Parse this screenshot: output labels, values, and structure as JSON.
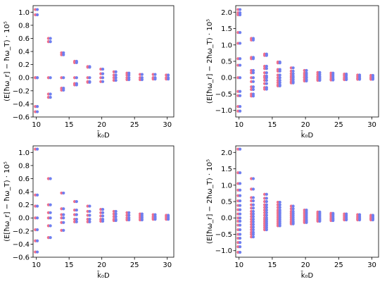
{
  "colors": {
    "point_a": "#ef6f8c",
    "point_b": "#6f7fef",
    "axis": "#000000"
  },
  "chart_data": [
    {
      "type": "scatter",
      "xlabel": "k̄₀D",
      "ylabel": "(E[ħω_r] − ħω_T) · 10⁵",
      "xlim": [
        9.5,
        31
      ],
      "ylim": [
        -0.6,
        1.1
      ],
      "xticks": [
        10,
        15,
        20,
        25,
        30
      ],
      "yticks": [
        -0.6,
        -0.4,
        -0.2,
        0.0,
        0.2,
        0.4,
        0.6,
        0.8,
        1.0
      ],
      "ytick_labels": [
        "−0.6",
        "−0.4",
        "−0.2",
        "0.0",
        "0.2",
        "0.4",
        "0.6",
        "0.8",
        "1.0"
      ],
      "grid": false,
      "series": [
        {
          "x": [
            10,
            10,
            10,
            10,
            10,
            10,
            12,
            12,
            12,
            12,
            12,
            14,
            14,
            14,
            14,
            14,
            16,
            16,
            16,
            16,
            16,
            18,
            18,
            18,
            18,
            18,
            20,
            20,
            20,
            20,
            22,
            22,
            22,
            22,
            24,
            24,
            24,
            24,
            26,
            26,
            26,
            28,
            28,
            28,
            30,
            30,
            30
          ],
          "values": [
            1.04,
            0.96,
            0.0,
            -0.44,
            -0.52,
            0.0,
            0.6,
            0.55,
            0.0,
            -0.25,
            -0.3,
            0.38,
            0.35,
            0.0,
            -0.16,
            -0.19,
            0.25,
            0.23,
            0.0,
            -0.09,
            -0.11,
            0.17,
            0.16,
            0.0,
            -0.06,
            -0.07,
            0.13,
            0.06,
            0.0,
            -0.06,
            0.09,
            0.04,
            0.0,
            -0.04,
            0.07,
            0.04,
            0.0,
            -0.03,
            0.05,
            0.0,
            -0.03,
            0.05,
            0.0,
            -0.02,
            0.04,
            0.0,
            -0.02
          ]
        }
      ]
    },
    {
      "type": "scatter",
      "xlabel": "k̄₀D",
      "ylabel": "(E[ħω_r] − 2ħω_T) · 10⁵",
      "xlim": [
        9.5,
        31
      ],
      "ylim": [
        -1.2,
        2.2
      ],
      "xticks": [
        10,
        15,
        20,
        25,
        30
      ],
      "yticks": [
        -1.0,
        -0.5,
        0.0,
        0.5,
        1.0,
        1.5,
        2.0
      ],
      "ytick_labels": [
        "−1.0",
        "−0.5",
        "0.0",
        "0.5",
        "1.0",
        "1.5",
        "2.0"
      ],
      "grid": false,
      "series": [
        {
          "x": [
            10,
            10,
            10,
            10,
            10,
            10,
            10,
            10,
            10,
            10,
            10,
            10,
            12,
            12,
            12,
            12,
            12,
            12,
            12,
            12,
            12,
            12,
            12,
            12,
            14,
            14,
            14,
            14,
            14,
            14,
            14,
            14,
            14,
            14,
            14,
            16,
            16,
            16,
            16,
            16,
            16,
            16,
            16,
            16,
            16,
            18,
            18,
            18,
            18,
            18,
            18,
            18,
            18,
            20,
            20,
            20,
            20,
            20,
            20,
            20,
            22,
            22,
            22,
            22,
            22,
            22,
            24,
            24,
            24,
            24,
            24,
            26,
            26,
            26,
            26,
            26,
            28,
            28,
            28,
            28,
            30,
            30,
            30,
            30
          ],
          "values": [
            2.08,
            1.98,
            1.92,
            1.38,
            1.05,
            0.58,
            0.38,
            0.0,
            -0.42,
            -0.55,
            -0.88,
            -1.02,
            1.2,
            1.15,
            0.62,
            0.58,
            0.22,
            0.15,
            0.0,
            -0.12,
            -0.28,
            -0.36,
            -0.5,
            -0.56,
            0.72,
            0.68,
            0.35,
            0.28,
            0.15,
            0.05,
            0.0,
            -0.08,
            -0.18,
            -0.3,
            -0.35,
            0.48,
            0.45,
            0.25,
            0.2,
            0.08,
            0.0,
            -0.08,
            -0.15,
            -0.22,
            -0.25,
            0.3,
            0.2,
            0.12,
            0.05,
            0.0,
            -0.06,
            -0.12,
            -0.16,
            0.22,
            0.14,
            0.08,
            0.02,
            0.0,
            -0.06,
            -0.1,
            0.16,
            0.1,
            0.04,
            0.0,
            -0.04,
            -0.08,
            0.14,
            0.08,
            0.02,
            -0.04,
            -0.07,
            0.11,
            0.06,
            0.0,
            -0.04,
            -0.06,
            0.08,
            0.03,
            -0.02,
            -0.05,
            0.07,
            0.02,
            -0.02,
            -0.05
          ]
        }
      ]
    },
    {
      "type": "scatter",
      "xlabel": "k̄₀D",
      "ylabel": "(E[ħω_r] − ħω_T) · 10⁵",
      "xlim": [
        9.5,
        31
      ],
      "ylim": [
        -0.6,
        1.1
      ],
      "xticks": [
        10,
        15,
        20,
        25,
        30
      ],
      "yticks": [
        -0.6,
        -0.4,
        -0.2,
        0.0,
        0.2,
        0.4,
        0.6,
        0.8,
        1.0
      ],
      "ytick_labels": [
        "−0.6",
        "−0.4",
        "−0.2",
        "0.0",
        "0.2",
        "0.4",
        "0.6",
        "0.8",
        "1.0"
      ],
      "grid": false,
      "series": [
        {
          "x": [
            10,
            10,
            10,
            10,
            10,
            10,
            10,
            12,
            12,
            12,
            12,
            12,
            12,
            14,
            14,
            14,
            14,
            14,
            14,
            16,
            16,
            16,
            16,
            16,
            18,
            18,
            18,
            18,
            18,
            20,
            20,
            20,
            20,
            20,
            22,
            22,
            22,
            22,
            22,
            24,
            24,
            24,
            24,
            26,
            26,
            26,
            26,
            28,
            28,
            28,
            28,
            30,
            30,
            30,
            30
          ],
          "values": [
            1.05,
            0.35,
            0.18,
            0.0,
            -0.18,
            -0.35,
            -0.52,
            0.6,
            0.2,
            0.08,
            0.0,
            -0.12,
            -0.3,
            0.38,
            0.14,
            0.05,
            0.0,
            -0.07,
            -0.19,
            0.25,
            0.12,
            0.05,
            -0.02,
            -0.06,
            0.18,
            0.1,
            0.04,
            -0.02,
            -0.06,
            0.13,
            0.08,
            0.03,
            -0.02,
            -0.05,
            0.1,
            0.06,
            0.02,
            -0.02,
            -0.04,
            0.08,
            0.04,
            0.0,
            -0.03,
            0.06,
            0.03,
            0.0,
            -0.03,
            0.05,
            0.02,
            0.0,
            -0.02,
            0.04,
            0.02,
            0.0,
            -0.02
          ]
        }
      ]
    },
    {
      "type": "scatter",
      "xlabel": "k̄₀D",
      "ylabel": "(E[ħω_r] − 2ħω_T) · 10⁵",
      "xlim": [
        9.5,
        31
      ],
      "ylim": [
        -1.2,
        2.2
      ],
      "xticks": [
        10,
        15,
        20,
        25,
        30
      ],
      "yticks": [
        -1.0,
        -0.5,
        0.0,
        0.5,
        1.0,
        1.5,
        2.0
      ],
      "ytick_labels": [
        "−1.0",
        "−0.5",
        "0.0",
        "0.5",
        "1.0",
        "1.5",
        "2.0"
      ],
      "grid": false,
      "series": [
        {
          "x": [
            10,
            10,
            10,
            10,
            10,
            10,
            10,
            10,
            10,
            10,
            10,
            10,
            10,
            10,
            10,
            10,
            10,
            10,
            12,
            12,
            12,
            12,
            12,
            12,
            12,
            12,
            12,
            12,
            12,
            12,
            12,
            12,
            12,
            12,
            12,
            14,
            14,
            14,
            14,
            14,
            14,
            14,
            14,
            14,
            14,
            14,
            14,
            14,
            14,
            14,
            16,
            16,
            16,
            16,
            16,
            16,
            16,
            16,
            16,
            16,
            16,
            16,
            18,
            18,
            18,
            18,
            18,
            18,
            18,
            18,
            18,
            18,
            20,
            20,
            20,
            20,
            20,
            20,
            20,
            20,
            22,
            22,
            22,
            22,
            22,
            22,
            22,
            24,
            24,
            24,
            24,
            24,
            24,
            26,
            26,
            26,
            26,
            26,
            28,
            28,
            28,
            28,
            28,
            30,
            30,
            30,
            30,
            30
          ],
          "values": [
            2.1,
            1.38,
            1.05,
            0.85,
            0.68,
            0.52,
            0.38,
            0.25,
            0.12,
            0.0,
            -0.1,
            -0.22,
            -0.36,
            -0.5,
            -0.62,
            -0.75,
            -0.88,
            -1.05,
            1.2,
            0.88,
            0.62,
            0.52,
            0.4,
            0.3,
            0.2,
            0.12,
            0.04,
            -0.04,
            -0.12,
            -0.2,
            -0.28,
            -0.36,
            -0.44,
            -0.5,
            -0.58,
            0.72,
            0.6,
            0.5,
            0.4,
            0.32,
            0.24,
            0.16,
            0.08,
            0.0,
            -0.06,
            -0.12,
            -0.18,
            -0.24,
            -0.3,
            -0.36,
            0.48,
            0.4,
            0.32,
            0.24,
            0.18,
            0.12,
            0.06,
            0.0,
            -0.06,
            -0.12,
            -0.18,
            -0.24,
            0.36,
            0.28,
            0.2,
            0.14,
            0.08,
            0.02,
            -0.04,
            -0.1,
            -0.14,
            -0.18,
            0.24,
            0.18,
            0.12,
            0.06,
            0.0,
            -0.06,
            -0.1,
            -0.14,
            0.18,
            0.13,
            0.08,
            0.03,
            -0.02,
            -0.06,
            -0.1,
            0.14,
            0.1,
            0.05,
            0.0,
            -0.04,
            -0.08,
            0.12,
            0.07,
            0.02,
            -0.03,
            -0.06,
            0.1,
            0.05,
            0.01,
            -0.03,
            -0.06,
            0.08,
            0.04,
            0.0,
            -0.03,
            -0.06
          ]
        }
      ]
    }
  ]
}
